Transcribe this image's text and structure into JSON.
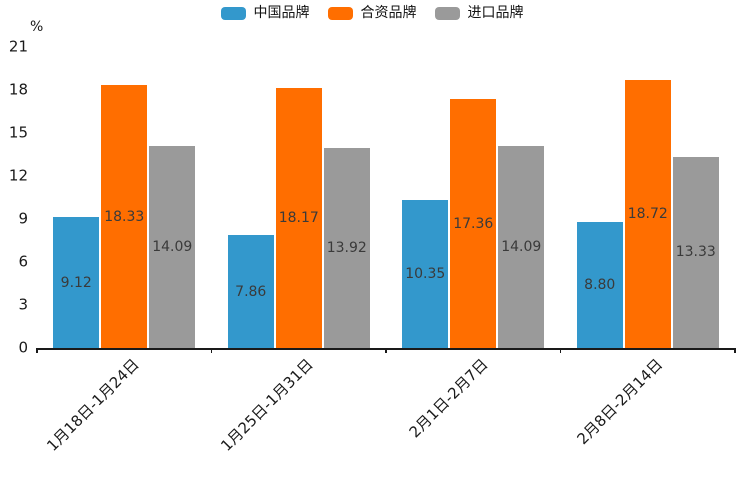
{
  "chart_data": {
    "type": "bar",
    "title": "",
    "unit_label": "%",
    "categories": [
      "1月18日-1月24日",
      "1月25日-1月31日",
      "2月1日-2月7日",
      "2月8日-2月14日"
    ],
    "series": [
      {
        "name": "中国品牌",
        "color": "#3398CC",
        "values": [
          9.12,
          7.86,
          10.35,
          8.8
        ],
        "value_labels": [
          "9.12",
          "7.86",
          "10.35",
          "8.80"
        ]
      },
      {
        "name": "合资品牌",
        "color": "#FF6E00",
        "values": [
          18.33,
          18.17,
          17.36,
          18.72
        ],
        "value_labels": [
          "18.33",
          "18.17",
          "17.36",
          "18.72"
        ]
      },
      {
        "name": "进口品牌",
        "color": "#9A9A9A",
        "values": [
          14.09,
          13.92,
          14.09,
          13.33
        ],
        "value_labels": [
          "14.09",
          "13.92",
          "14.09",
          "13.33"
        ]
      }
    ],
    "y_ticks": [
      0,
      3,
      6,
      9,
      12,
      15,
      18,
      21
    ],
    "ylim": [
      0,
      21
    ],
    "grid": false,
    "legend_position": "top-center",
    "bar_label_position": "inside-middle",
    "x_label_rotation_deg": 45,
    "background": "#ffffff",
    "axis_color": "#1a1a1a",
    "label_text_color": "#3a3a3a"
  }
}
